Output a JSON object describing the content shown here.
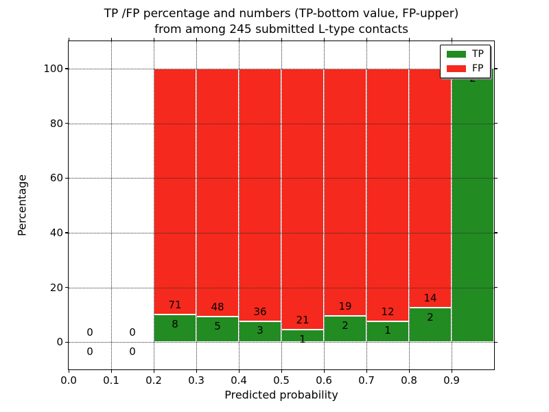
{
  "figure": {
    "title_line1": "TP /FP percentage and numbers (TP-bottom value, FP-upper)",
    "title_line2": "from among 245 submitted L-type contacts"
  },
  "chart_data": {
    "type": "bar",
    "stacked": true,
    "title": "TP /FP percentage and numbers (TP-bottom value, FP-upper) from among 245 submitted L-type contacts",
    "xlabel": "Predicted probability",
    "ylabel": "Percentage",
    "xlim": [
      0.0,
      1.0
    ],
    "ylim": [
      -10,
      110
    ],
    "grid": true,
    "grid_style": "dotted",
    "legend_position": "upper right",
    "background": "#ffffff",
    "bar_edge_color": "#ffffff",
    "series": [
      {
        "name": "TP",
        "color": "#228b22"
      },
      {
        "name": "FP",
        "color": "#f5291d"
      }
    ],
    "note": "stacked percentage bars; counts shown as labels; TP% = tp/(tp+fp)*100",
    "bins": [
      {
        "x0": 0.0,
        "x1": 0.1,
        "tp": 0,
        "fp": 0
      },
      {
        "x0": 0.1,
        "x1": 0.2,
        "tp": 0,
        "fp": 0
      },
      {
        "x0": 0.2,
        "x1": 0.3,
        "tp": 8,
        "fp": 71
      },
      {
        "x0": 0.3,
        "x1": 0.4,
        "tp": 5,
        "fp": 48
      },
      {
        "x0": 0.4,
        "x1": 0.5,
        "tp": 3,
        "fp": 36
      },
      {
        "x0": 0.5,
        "x1": 0.6,
        "tp": 1,
        "fp": 21
      },
      {
        "x0": 0.6,
        "x1": 0.7,
        "tp": 2,
        "fp": 19
      },
      {
        "x0": 0.7,
        "x1": 0.8,
        "tp": 1,
        "fp": 12
      },
      {
        "x0": 0.8,
        "x1": 0.9,
        "tp": 2,
        "fp": 14
      },
      {
        "x0": 0.9,
        "x1": 1.0,
        "tp": 2,
        "fp": 0
      }
    ],
    "xticks": [
      {
        "v": 0.0,
        "label": "0.0"
      },
      {
        "v": 0.1,
        "label": "0.1"
      },
      {
        "v": 0.2,
        "label": "0.2"
      },
      {
        "v": 0.3,
        "label": "0.3"
      },
      {
        "v": 0.4,
        "label": "0.4"
      },
      {
        "v": 0.5,
        "label": "0.5"
      },
      {
        "v": 0.6,
        "label": "0.6"
      },
      {
        "v": 0.7,
        "label": "0.7"
      },
      {
        "v": 0.8,
        "label": "0.8"
      },
      {
        "v": 0.9,
        "label": "0.9"
      }
    ],
    "yticks": [
      {
        "v": 0,
        "label": "0"
      },
      {
        "v": 20,
        "label": "20"
      },
      {
        "v": 40,
        "label": "40"
      },
      {
        "v": 60,
        "label": "60"
      },
      {
        "v": 80,
        "label": "80"
      },
      {
        "v": 100,
        "label": "100"
      }
    ]
  }
}
